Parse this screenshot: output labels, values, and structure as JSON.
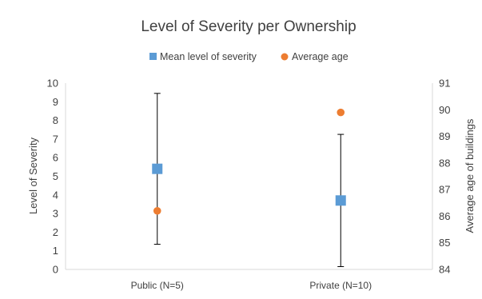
{
  "chart_data": {
    "type": "scatter",
    "title": "Level of Severity per Ownership",
    "categories": [
      "Public  (N=5)",
      "Private (N=10)"
    ],
    "ylabel": "Level of Severity",
    "y2label": "Average age of buildings",
    "ylim": [
      0,
      10
    ],
    "y2lim": [
      84,
      91
    ],
    "yticks": [
      "0",
      "1",
      "2",
      "3",
      "4",
      "5",
      "6",
      "7",
      "8",
      "9",
      "10"
    ],
    "y2ticks": [
      "84",
      "85",
      "86",
      "87",
      "88",
      "89",
      "90",
      "91"
    ],
    "grid": false,
    "legend_position": "top",
    "series": [
      {
        "name": "Mean level of severity",
        "axis": "left",
        "marker": "square",
        "color": "#5B9BD5",
        "values": [
          5.4,
          3.7
        ],
        "error_low": [
          1.35,
          0.15
        ],
        "error_high": [
          9.45,
          7.25
        ]
      },
      {
        "name": "Average age",
        "axis": "right",
        "marker": "circle",
        "color": "#ED7D31",
        "values": [
          86.2,
          89.9
        ]
      }
    ]
  }
}
